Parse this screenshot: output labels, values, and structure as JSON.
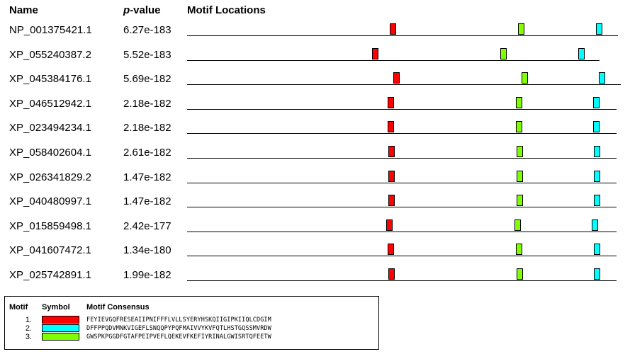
{
  "header": {
    "name": "Name",
    "pvalue_italic": "p",
    "pvalue_rest": "-value",
    "motifs": "Motif Locations"
  },
  "colors": {
    "motif1": "#ff0000",
    "motif2": "#00ffff",
    "motif3": "#80ff00"
  },
  "sequences": [
    {
      "name": "NP_001375421.1",
      "pvalue": "6.27e-183"
    },
    {
      "name": "XP_055240387.2",
      "pvalue": "5.52e-183"
    },
    {
      "name": "XP_045384176.1",
      "pvalue": "5.69e-182"
    },
    {
      "name": "XP_046512942.1",
      "pvalue": "2.18e-182"
    },
    {
      "name": "XP_023494234.1",
      "pvalue": "2.18e-182"
    },
    {
      "name": "XP_058402604.1",
      "pvalue": "2.61e-182"
    },
    {
      "name": "XP_026341829.2",
      "pvalue": "1.47e-182"
    },
    {
      "name": "XP_040480997.1",
      "pvalue": "1.47e-182"
    },
    {
      "name": "XP_015859498.1",
      "pvalue": "2.42e-177"
    },
    {
      "name": "XP_041607472.1",
      "pvalue": "1.34e-180"
    },
    {
      "name": "XP_025742891.1",
      "pvalue": "1.99e-182"
    }
  ],
  "legend": {
    "col_motif": "Motif",
    "col_symbol": "Symbol",
    "col_consensus": "Motif Consensus",
    "items": [
      {
        "num": "1.",
        "color": "#ff0000",
        "consensus": "FEYIEVGQFRESEAIIPNIFFFLVLLSYERYHSKQIIGIPKIIQLCDGIM"
      },
      {
        "num": "2.",
        "color": "#00ffff",
        "consensus": "DFFPPQDVMNKVIGEFLSNQQPYPQFMAIVVYKVFQTLHSTGQSSMVRDW"
      },
      {
        "num": "3.",
        "color": "#80ff00",
        "consensus": "GWSPKPGGDFGTAFPEIPVEFLQEKEVFKEFIYRINALGWISRTQFEETW"
      }
    ]
  }
}
